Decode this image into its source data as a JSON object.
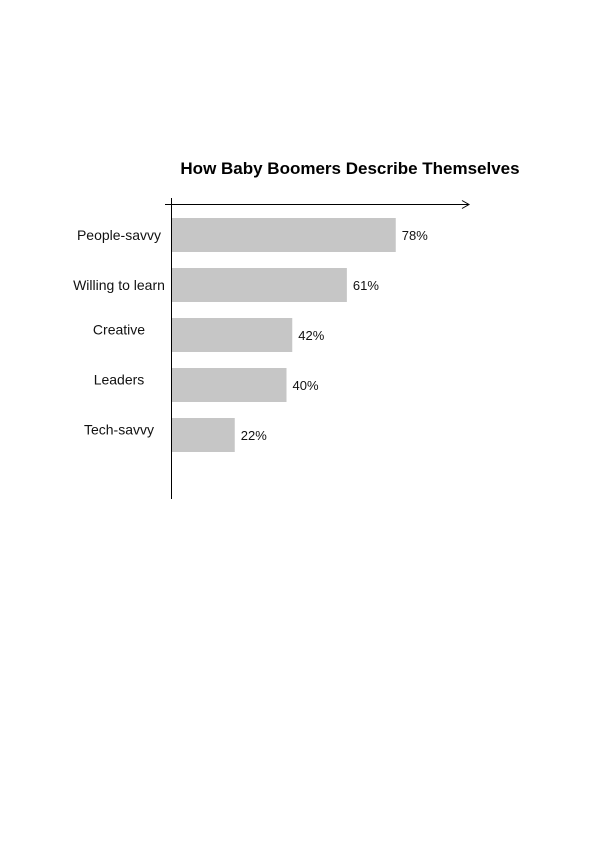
{
  "chart_data": {
    "type": "bar",
    "orientation": "horizontal",
    "title": "How Baby Boomers Describe Themselves",
    "categories": [
      "People-savvy",
      "Willing to learn",
      "Creative",
      "Leaders",
      "Tech-savvy"
    ],
    "values": [
      78,
      61,
      42,
      40,
      22
    ],
    "value_labels": [
      "78%",
      "61%",
      "42%",
      "40%",
      "22%"
    ],
    "unit": "%",
    "xlabel": "",
    "ylabel": "",
    "xlim": [
      0,
      100
    ],
    "grid": false,
    "legend": "none",
    "colors": {
      "bar": "#c6c6c6",
      "axis": "#000000",
      "text": "#111111"
    }
  }
}
